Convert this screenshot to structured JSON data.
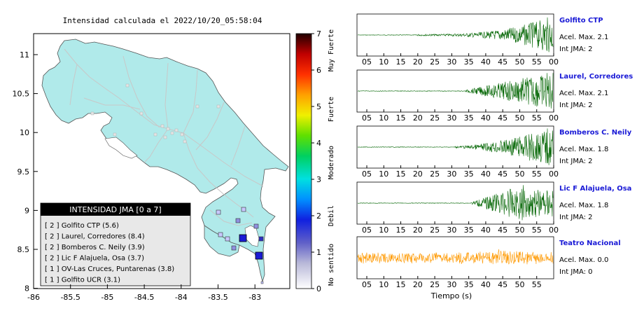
{
  "map": {
    "title": "Intensidad calculada el 2022/10/20_05:58:04",
    "x_ticks": [
      "-86",
      "-85.5",
      "-85",
      "-84.5",
      "-84",
      "-83.5",
      "-83"
    ],
    "y_ticks": [
      "11",
      "10.5",
      "10",
      "9.5",
      "9",
      "8.5",
      "8"
    ],
    "legend_title": "INTENSIDAD JMA [0 a 7]",
    "legend_items": [
      "[ 2 ]  Golfito CTP (5.6)",
      "[ 2 ]  Laurel, Corredores (8.4)",
      "[ 2 ]  Bomberos C. Neily (3.9)",
      "[ 2 ]  Lic F Alajuela, Osa (3.7)",
      "[ 1 ]  OV-Las Cruces, Puntarenas (3.8)",
      "[ 1 ]  Golfito UCR (3.1)"
    ],
    "colors": {
      "land": "#b0eaea",
      "sea": "#ffffff",
      "roads": "#c8c8c8",
      "station_strong": "#1a1ad6"
    }
  },
  "colorbar": {
    "ticks": [
      "0",
      "1",
      "2",
      "3",
      "4",
      "5",
      "6",
      "7"
    ],
    "labels": [
      "No sentido",
      "Debil",
      "Moderado",
      "Fuerte",
      "Muy Fuerte"
    ]
  },
  "seismograms": {
    "x_ticks": [
      "05",
      "10",
      "15",
      "20",
      "25",
      "30",
      "35",
      "40",
      "45",
      "50",
      "55",
      "00"
    ],
    "x_ticks_last": [
      "05",
      "10",
      "15",
      "20",
      "25",
      "30",
      "35",
      "40",
      "45",
      "50",
      "55"
    ],
    "xlabel": "Tiempo (s)",
    "stations": [
      {
        "name": "Golfito CTP",
        "accel": "Acel. Max. 2.1",
        "int": "Int JMA: 2",
        "color": "#006400",
        "onset": 0.3,
        "peak_at": 0.97,
        "grow": 3.0,
        "amp": 0.9
      },
      {
        "name": "Laurel, Corredores",
        "accel": "Acel. Max. 2.1",
        "int": "Int JMA: 2",
        "color": "#006400",
        "onset": 0.55,
        "peak_at": 0.98,
        "grow": 1.0,
        "amp": 0.95
      },
      {
        "name": "Bomberos C. Neily",
        "accel": "Acel. Max. 1.8",
        "int": "Int JMA: 2",
        "color": "#006400",
        "onset": 0.5,
        "peak_at": 0.97,
        "grow": 1.6,
        "amp": 0.95
      },
      {
        "name": "Lic F Alajuela, Osa",
        "accel": "Acel. Max. 1.8",
        "int": "Int JMA: 2",
        "color": "#006400",
        "onset": 0.58,
        "peak_at": 0.85,
        "grow": 0.5,
        "amp": 0.95
      },
      {
        "name": "Teatro Nacional",
        "accel": "Acel. Max. 0.0",
        "int": "Int JMA: 0",
        "color": "#ff9900",
        "onset": 0.0,
        "peak_at": 0.75,
        "grow": 0.0,
        "amp": 0.45
      }
    ]
  },
  "chart_data": {
    "type": "line",
    "title": "",
    "xlabel": "Tiempo (s)",
    "x_ticks": [
      "05",
      "10",
      "15",
      "20",
      "25",
      "30",
      "35",
      "40",
      "45",
      "50",
      "55",
      "00"
    ],
    "series": [
      {
        "name": "Golfito CTP",
        "acel_max": 2.1,
        "int_jma": 2
      },
      {
        "name": "Laurel, Corredores",
        "acel_max": 2.1,
        "int_jma": 2
      },
      {
        "name": "Bomberos C. Neily",
        "acel_max": 1.8,
        "int_jma": 2
      },
      {
        "name": "Lic F Alajuela, Osa",
        "acel_max": 1.8,
        "int_jma": 2
      },
      {
        "name": "Teatro Nacional",
        "acel_max": 0.0,
        "int_jma": 0
      }
    ]
  }
}
